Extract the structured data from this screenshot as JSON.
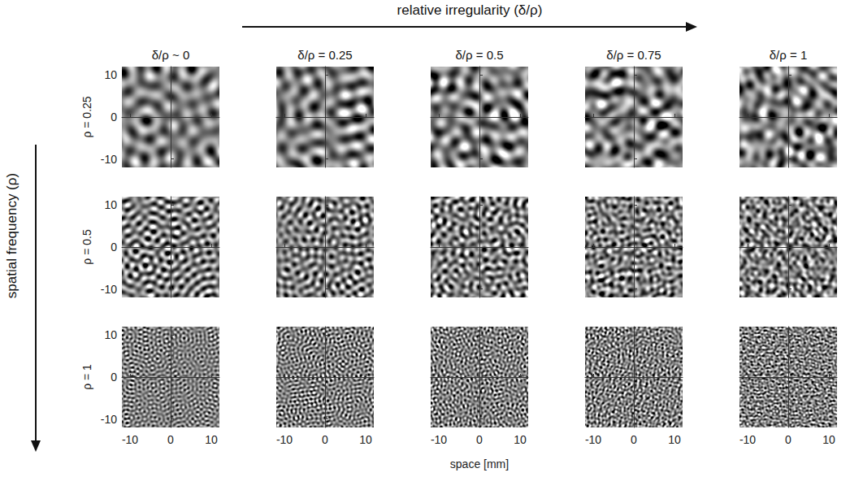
{
  "chart_data": {
    "type": "heatmap",
    "title": "relative irregularity (δ/ρ)",
    "y_title": "spatial frequency (ρ)",
    "xlabel": "space [mm]",
    "columns": [
      {
        "label": "δ/ρ ~ 0",
        "value": 0
      },
      {
        "label": "δ/ρ = 0.25",
        "value": 0.25
      },
      {
        "label": "δ/ρ = 0.5",
        "value": 0.5
      },
      {
        "label": "δ/ρ = 0.75",
        "value": 0.75
      },
      {
        "label": "δ/ρ = 1",
        "value": 1
      }
    ],
    "rows": [
      {
        "label": "ρ = 0.25",
        "value": 0.25
      },
      {
        "label": "ρ = 0.5",
        "value": 0.5
      },
      {
        "label": "ρ = 1",
        "value": 1
      }
    ],
    "xlim": [
      -12,
      12
    ],
    "ylim": [
      -12,
      12
    ],
    "xticks": [
      -10,
      0,
      10
    ],
    "yticks": [
      -10,
      0,
      10
    ],
    "grid": false
  }
}
